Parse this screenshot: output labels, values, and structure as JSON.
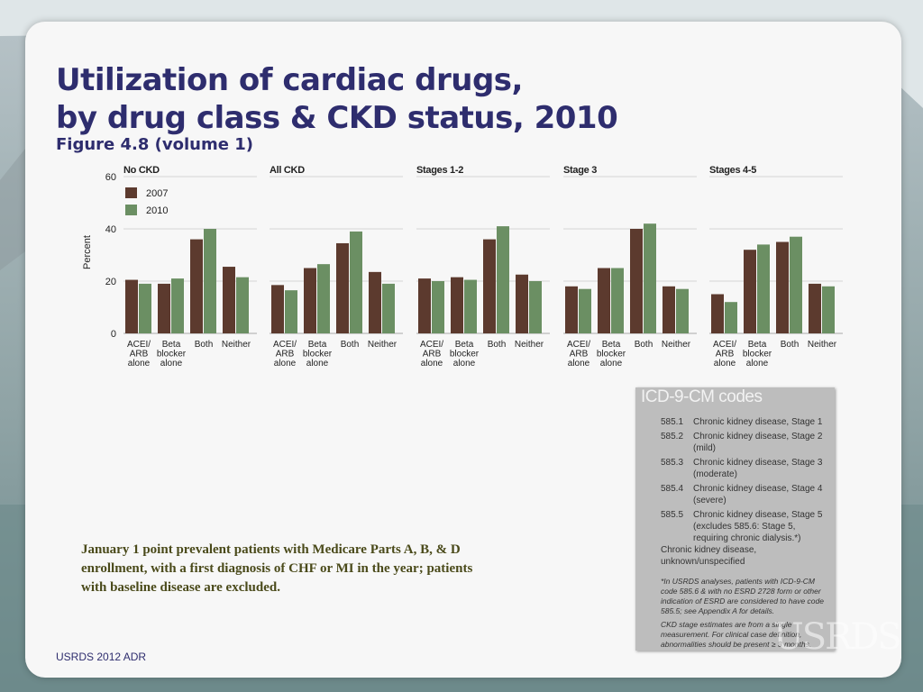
{
  "title_line1": "Utilization of cardiac drugs,",
  "title_line2": "by drug class & CKD status, 2010",
  "subtitle": "Figure 4.8 (volume 1)",
  "footer": "USRDS 2012 ADR",
  "population_note": "January 1 point prevalent patients with Medicare Parts A, B, & D enrollment, with a first diagnosis of CHF or MI in the year; patients with baseline disease are excluded.",
  "colors": {
    "series_2007": "#5c3a2e",
    "series_2010": "#6b8f63",
    "title": "#2e2d6e"
  },
  "chart_data": {
    "type": "bar",
    "ylabel": "Percent",
    "ylim": [
      0,
      60
    ],
    "yticks": [
      0,
      20,
      40,
      60
    ],
    "grid": true,
    "legend": [
      "2007",
      "2010"
    ],
    "categories": [
      [
        "ACEI/",
        "ARB",
        "alone"
      ],
      [
        "Beta",
        "blocker",
        "alone"
      ],
      [
        "Both"
      ],
      [
        "Neither"
      ]
    ],
    "panels": [
      {
        "title": "No CKD",
        "series": [
          {
            "name": "2007",
            "values": [
              20.5,
              19,
              36,
              25.5
            ]
          },
          {
            "name": "2010",
            "values": [
              19,
              21,
              40,
              21.5
            ]
          }
        ]
      },
      {
        "title": "All CKD",
        "series": [
          {
            "name": "2007",
            "values": [
              18.5,
              25,
              34.5,
              23.5
            ]
          },
          {
            "name": "2010",
            "values": [
              16.5,
              26.5,
              39,
              19
            ]
          }
        ]
      },
      {
        "title": "Stages 1-2",
        "series": [
          {
            "name": "2007",
            "values": [
              21,
              21.5,
              36,
              22.5
            ]
          },
          {
            "name": "2010",
            "values": [
              20,
              20.5,
              41,
              20
            ]
          }
        ]
      },
      {
        "title": "Stage 3",
        "series": [
          {
            "name": "2007",
            "values": [
              18,
              25,
              40,
              18
            ]
          },
          {
            "name": "2010",
            "values": [
              17,
              25,
              42,
              17
            ]
          }
        ]
      },
      {
        "title": "Stages 4-5",
        "series": [
          {
            "name": "2007",
            "values": [
              15,
              32,
              35,
              19
            ]
          },
          {
            "name": "2010",
            "values": [
              12,
              34,
              37,
              18
            ]
          }
        ]
      }
    ]
  },
  "icd": {
    "heading": "ICD-9-CM codes",
    "rows": [
      {
        "code": "585.1",
        "desc": "Chronic kidney disease, Stage 1"
      },
      {
        "code": "585.2",
        "desc": "Chronic kidney disease, Stage 2 (mild)"
      },
      {
        "code": "585.3",
        "desc": "Chronic kidney disease, Stage 3 (moderate)"
      },
      {
        "code": "585.4",
        "desc": "Chronic kidney disease, Stage 4 (severe)"
      },
      {
        "code": "585.5",
        "desc": "Chronic kidney disease, Stage 5 (excludes 585.6: Stage 5, requiring chronic dialysis.*)"
      }
    ],
    "unknown": "Chronic kidney disease, unknown/unspecified",
    "footnote1": "*In USRDS analyses, patients with ICD-9-CM code 585.6 & with no ESRD 2728 form or other indication of ESRD are considered to have code 585.5; see Appendix A for details.",
    "footnote2": "CKD stage estimates are from a single measurement. For clinical case definition, abnormalities should be present ≥ 3 months.",
    "watermark": "USRDS"
  }
}
